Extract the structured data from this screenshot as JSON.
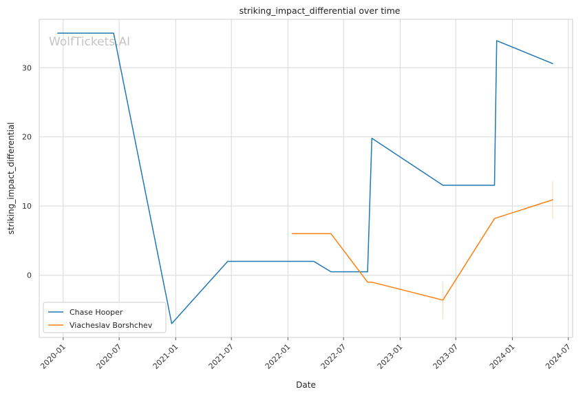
{
  "chart_data": {
    "type": "line",
    "title": "striking_impact_differential over time",
    "xlabel": "Date",
    "ylabel": "striking_impact_differential",
    "watermark": "WolfTickets.AI",
    "x_ticks": [
      "2020-01",
      "2020-07",
      "2021-01",
      "2021-07",
      "2022-01",
      "2022-07",
      "2023-01",
      "2023-07",
      "2024-01",
      "2024-07"
    ],
    "y_ticks": [
      0,
      10,
      20,
      30
    ],
    "xlim": [
      "2019-10-15",
      "2024-07-15"
    ],
    "ylim": [
      -9,
      37
    ],
    "grid": true,
    "legend_position": "lower-left",
    "colors": {
      "Chase Hooper": "#1f77b4",
      "Viacheslav Borshchev": "#ff7f0e"
    },
    "series": [
      {
        "name": "Chase Hooper",
        "color": "#1f77b4",
        "points": [
          {
            "x": "2019-12-14",
            "y": 35
          },
          {
            "x": "2020-06-13",
            "y": 35
          },
          {
            "x": "2020-12-19",
            "y": -7
          },
          {
            "x": "2021-06-19",
            "y": 2
          },
          {
            "x": "2022-03-26",
            "y": 2
          },
          {
            "x": "2022-05-21",
            "y": 0.5
          },
          {
            "x": "2022-09-17",
            "y": 0.5
          },
          {
            "x": "2022-10-01",
            "y": 19.8
          },
          {
            "x": "2023-05-20",
            "y": 13
          },
          {
            "x": "2023-11-04",
            "y": 13
          },
          {
            "x": "2023-11-11",
            "y": 33.9
          },
          {
            "x": "2024-05-11",
            "y": 30.6
          }
        ]
      },
      {
        "name": "Viacheslav Borshchev",
        "color": "#ff7f0e",
        "points": [
          {
            "x": "2022-01-15",
            "y": 6
          },
          {
            "x": "2022-05-21",
            "y": 6
          },
          {
            "x": "2022-09-17",
            "y": -1
          },
          {
            "x": "2022-10-01",
            "y": -1
          },
          {
            "x": "2023-05-20",
            "y": -3.6
          },
          {
            "x": "2023-11-04",
            "y": 8.2
          },
          {
            "x": "2024-05-11",
            "y": 10.9
          }
        ],
        "error_bars": [
          {
            "x": "2023-05-20",
            "low": -6.3,
            "high": -0.9
          },
          {
            "x": "2024-05-11",
            "low": 8.2,
            "high": 13.6
          }
        ]
      }
    ]
  }
}
